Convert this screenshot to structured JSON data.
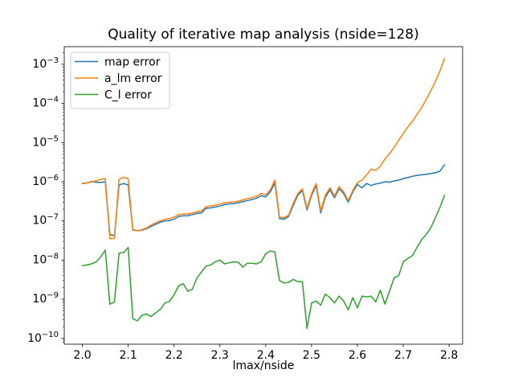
{
  "chart_data": {
    "type": "line",
    "title": "Quality of iterative map analysis (nside=128)",
    "xlabel": "lmax/nside",
    "ylabel": "",
    "yscale": "log",
    "grid": false,
    "xlim": [
      1.9605,
      2.8295
    ],
    "ylim": [
      7.1e-11,
      0.00282
    ],
    "x_tick_values": [
      2.0,
      2.1,
      2.2,
      2.3,
      2.4,
      2.5,
      2.6,
      2.7,
      2.8
    ],
    "x_tick_labels": [
      "2.0",
      "2.1",
      "2.2",
      "2.3",
      "2.4",
      "2.5",
      "2.6",
      "2.7",
      "2.8"
    ],
    "y_tick_exponents": [
      -3,
      -4,
      -5,
      -6,
      -7,
      -8,
      -9,
      -10
    ],
    "legend": {
      "location": "upper left",
      "entries": [
        "map error",
        "a_lm error",
        "C_l error"
      ]
    },
    "x": [
      2.0,
      2.01,
      2.02,
      2.03,
      2.04,
      2.05,
      2.06,
      2.07,
      2.08,
      2.09,
      2.1,
      2.11,
      2.12,
      2.13,
      2.14,
      2.15,
      2.16,
      2.17,
      2.18,
      2.19,
      2.2,
      2.21,
      2.22,
      2.23,
      2.24,
      2.25,
      2.26,
      2.27,
      2.28,
      2.29,
      2.3,
      2.31,
      2.32,
      2.33,
      2.34,
      2.35,
      2.36,
      2.37,
      2.38,
      2.39,
      2.4,
      2.41,
      2.42,
      2.43,
      2.44,
      2.45,
      2.46,
      2.47,
      2.48,
      2.49,
      2.5,
      2.51,
      2.52,
      2.53,
      2.54,
      2.55,
      2.56,
      2.57,
      2.58,
      2.59,
      2.6,
      2.61,
      2.62,
      2.63,
      2.64,
      2.65,
      2.66,
      2.67,
      2.68,
      2.69,
      2.7,
      2.71,
      2.72,
      2.73,
      2.74,
      2.75,
      2.76,
      2.77,
      2.78,
      2.79
    ],
    "series": [
      {
        "name": "map error",
        "color": "#1f77b4",
        "values": [
          9e-07,
          9.3e-07,
          1.02e-06,
          9.7e-07,
          9.6e-07,
          1e-06,
          4.5e-08,
          4.2e-08,
          8.3e-07,
          9e-07,
          8.3e-07,
          6e-08,
          5.6e-08,
          5.8e-08,
          6.3e-08,
          7.2e-08,
          8.2e-08,
          9.2e-08,
          1e-07,
          1.02e-07,
          1.1e-07,
          1.3e-07,
          1.35e-07,
          1.35e-07,
          1.45e-07,
          1.55e-07,
          1.6e-07,
          2.1e-07,
          2.15e-07,
          2.25e-07,
          2.4e-07,
          2.6e-07,
          2.7e-07,
          2.75e-07,
          2.9e-07,
          3.1e-07,
          3.3e-07,
          3.5e-07,
          3.8e-07,
          4.4e-07,
          4.1e-07,
          5.5e-07,
          9.3e-07,
          1.15e-07,
          1.1e-07,
          1.3e-07,
          2.5e-07,
          4.5e-07,
          6e-07,
          1.9e-07,
          4.5e-07,
          8e-07,
          1.6e-07,
          4e-07,
          6.2e-07,
          3.9e-07,
          6.6e-07,
          5e-07,
          3e-07,
          5.5e-07,
          8.5e-07,
          7e-07,
          9e-07,
          8e-07,
          8.8e-07,
          9.2e-07,
          1e-06,
          9.7e-07,
          1.05e-06,
          1.1e-06,
          1.2e-06,
          1.28e-06,
          1.38e-06,
          1.45e-06,
          1.5e-06,
          1.55e-06,
          1.62e-06,
          1.7e-06,
          1.85e-06,
          2.7e-06
        ]
      },
      {
        "name": "a_lm error",
        "color": "#ff7f0e",
        "values": [
          9.2e-07,
          9.4e-07,
          1e-06,
          1.05e-06,
          1.15e-06,
          1.2e-06,
          3.5e-08,
          3.6e-08,
          1.15e-06,
          1.3e-06,
          1.2e-06,
          5.8e-08,
          5.6e-08,
          6e-08,
          6.6e-08,
          7.8e-08,
          9e-08,
          1e-07,
          1.1e-07,
          1.15e-07,
          1.25e-07,
          1.45e-07,
          1.5e-07,
          1.5e-07,
          1.6e-07,
          1.7e-07,
          1.8e-07,
          2.3e-07,
          2.4e-07,
          2.5e-07,
          2.7e-07,
          2.9e-07,
          3e-07,
          3.05e-07,
          3.2e-07,
          3.45e-07,
          3.7e-07,
          3.9e-07,
          4.3e-07,
          5e-07,
          4.6e-07,
          6.2e-07,
          1.1e-06,
          1.25e-07,
          1.2e-07,
          1.4e-07,
          2.8e-07,
          5e-07,
          6.6e-07,
          2.1e-07,
          5e-07,
          9e-07,
          1.8e-07,
          4.5e-07,
          7e-07,
          4.3e-07,
          7.5e-07,
          5.6e-07,
          3.3e-07,
          6e-07,
          9.5e-07,
          1.1e-06,
          1.5e-06,
          2.1e-06,
          1.95e-06,
          2.5e-06,
          3.8e-06,
          5.2e-06,
          7.5e-06,
          1.15e-05,
          1.7e-05,
          2.5e-05,
          3.5e-05,
          5.2e-05,
          7.8e-05,
          0.000125,
          0.00021,
          0.00036,
          0.00068,
          0.0014
        ]
      },
      {
        "name": "C_l error",
        "color": "#2ca02c",
        "values": [
          7.2e-09,
          7.5e-09,
          8e-09,
          9e-09,
          1.2e-08,
          1.8e-08,
          7.5e-10,
          8.5e-10,
          1.5e-08,
          1.55e-08,
          2.1e-08,
          3.2e-10,
          2.8e-10,
          3.9e-10,
          4.2e-10,
          3.6e-10,
          4.5e-10,
          5.5e-10,
          8e-10,
          8.8e-10,
          1.3e-09,
          2.2e-09,
          2.5e-09,
          1.6e-09,
          1.8e-09,
          3.5e-09,
          5e-09,
          7e-09,
          7.5e-09,
          9e-09,
          1e-08,
          8e-09,
          8.5e-09,
          9e-09,
          8.8e-09,
          6.6e-09,
          8.3e-09,
          8.3e-09,
          8e-09,
          9e-09,
          1.45e-08,
          1.7e-08,
          1.6e-08,
          3e-09,
          2.6e-09,
          2.7e-09,
          3.2e-09,
          2.8e-09,
          2.8e-09,
          1.8e-10,
          8e-10,
          9e-10,
          7e-10,
          1.35e-09,
          1.1e-09,
          8e-10,
          1.2e-09,
          9e-10,
          5.3e-10,
          1.1e-09,
          6e-10,
          1.2e-09,
          1.15e-09,
          1.2e-09,
          8.5e-10,
          1.7e-09,
          7.5e-10,
          1.6e-09,
          3.5e-09,
          4e-09,
          9e-09,
          1.1e-08,
          1.3e-08,
          2.1e-08,
          3.3e-08,
          4.5e-08,
          6.6e-08,
          1.2e-07,
          2.2e-07,
          4.5e-07
        ]
      }
    ]
  }
}
